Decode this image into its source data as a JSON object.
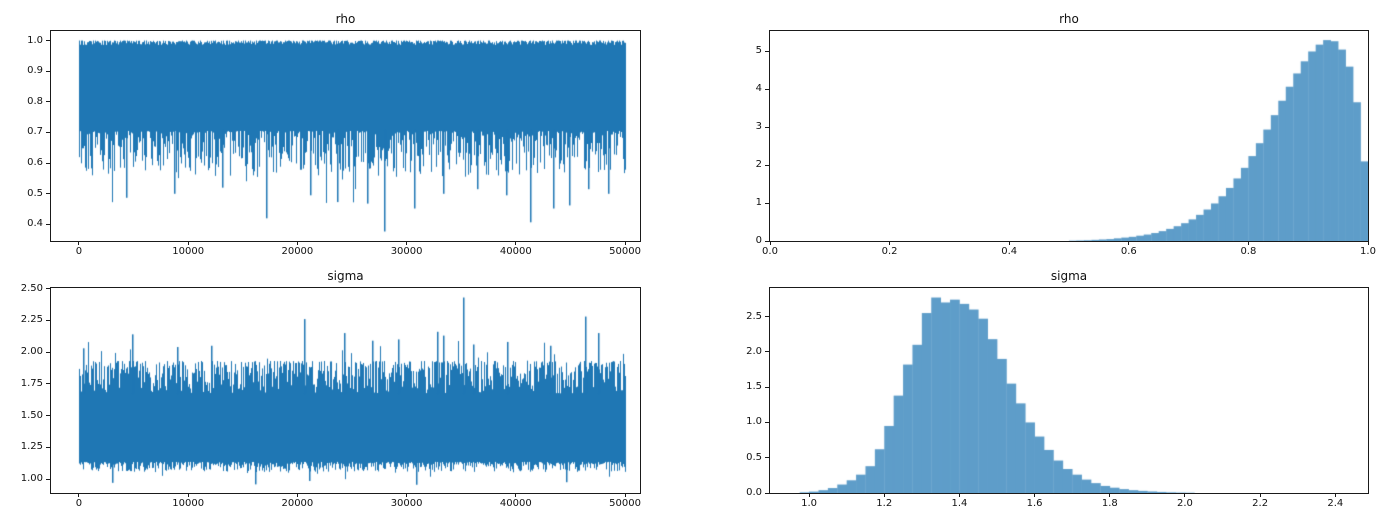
{
  "figure": {
    "background": "#ffffff",
    "spine_color": "#1a1a1a",
    "text_color": "#111111",
    "trace_line_color": "#1f77b4",
    "hist_fill_color": "#5E9DC9"
  },
  "chart_data": [
    {
      "id": "rho-trace",
      "type": "line",
      "title": "rho",
      "xlabel": "",
      "ylabel": "",
      "xlim": [
        -2560,
        51370
      ],
      "ylim": [
        0.346,
        1.031
      ],
      "xtick_vals": [
        0,
        10000,
        20000,
        30000,
        40000,
        50000
      ],
      "xtick_labels": [
        "0",
        "10000",
        "20000",
        "30000",
        "40000",
        "50000"
      ],
      "ytick_vals": [
        0.4,
        0.5,
        0.6,
        0.7,
        0.8,
        0.9,
        1.0
      ],
      "ytick_labels": [
        "0.4",
        "0.5",
        "0.6",
        "0.7",
        "0.8",
        "0.9",
        "1.0"
      ],
      "n_samples": 50000,
      "seed": 1234,
      "band": {
        "top_range": [
          0.9855,
          1.0
        ],
        "bottom_range": [
          0.555,
          0.705
        ],
        "bottom_spike_prob": 0.045,
        "bottom_spike_depth": 0.13,
        "floor": 0.377
      },
      "notable_lows": [
        [
          4300,
          0.487
        ],
        [
          8700,
          0.5
        ],
        [
          13100,
          0.52
        ],
        [
          17100,
          0.42
        ],
        [
          21200,
          0.495
        ],
        [
          23600,
          0.473
        ],
        [
          26400,
          0.468
        ],
        [
          27900,
          0.377
        ],
        [
          30700,
          0.452
        ],
        [
          33300,
          0.5
        ],
        [
          36400,
          0.515
        ],
        [
          39100,
          0.495
        ],
        [
          41300,
          0.407
        ],
        [
          43400,
          0.452
        ],
        [
          44900,
          0.462
        ],
        [
          46600,
          0.515
        ],
        [
          48400,
          0.5
        ]
      ],
      "summary": {
        "description": "MCMC trace of rho over 50000 iterations; dense band hugging 1.0 with lower edge fluctuating around 0.55-0.70",
        "min": 0.377,
        "max": 1.0
      }
    },
    {
      "id": "rho-hist",
      "type": "histogram",
      "title": "rho",
      "xlabel": "",
      "ylabel": "",
      "xlim": [
        0.0,
        1.0
      ],
      "ylim": [
        0,
        5.54
      ],
      "xtick_vals": [
        0.0,
        0.2,
        0.4,
        0.6,
        0.8,
        1.0
      ],
      "xtick_labels": [
        "0.0",
        "0.2",
        "0.4",
        "0.6",
        "0.8",
        "1.0"
      ],
      "ytick_vals": [
        0,
        1,
        2,
        3,
        4,
        5
      ],
      "ytick_labels": [
        "0",
        "1",
        "2",
        "3",
        "4",
        "5"
      ],
      "bin_start": 0.5,
      "bin_width": 0.0125,
      "densities": [
        0.01,
        0.015,
        0.02,
        0.03,
        0.04,
        0.05,
        0.07,
        0.09,
        0.11,
        0.14,
        0.17,
        0.21,
        0.26,
        0.32,
        0.39,
        0.47,
        0.57,
        0.69,
        0.83,
        0.99,
        1.18,
        1.4,
        1.65,
        1.93,
        2.24,
        2.58,
        2.94,
        3.32,
        3.7,
        4.07,
        4.42,
        4.74,
        5.0,
        5.18,
        5.3,
        5.27,
        5.05,
        4.6,
        3.66,
        2.1
      ],
      "summary": {
        "description": "Posterior density histogram of rho, left-skewed, peak ~5.3 near 0.93, truncated at 1.0 where density ~2.1"
      }
    },
    {
      "id": "sigma-trace",
      "type": "line",
      "title": "sigma",
      "xlabel": "",
      "ylabel": "",
      "xlim": [
        -2560,
        51370
      ],
      "ylim": [
        0.89,
        2.505
      ],
      "xtick_vals": [
        0,
        10000,
        20000,
        30000,
        40000,
        50000
      ],
      "xtick_labels": [
        "0",
        "10000",
        "20000",
        "30000",
        "40000",
        "50000"
      ],
      "ytick_vals": [
        1.0,
        1.25,
        1.5,
        1.75,
        2.0,
        2.25,
        2.5
      ],
      "ytick_labels": [
        "1.00",
        "1.25",
        "1.50",
        "1.75",
        "2.00",
        "2.25",
        "2.50"
      ],
      "n_samples": 50000,
      "seed": 5678,
      "band": {
        "top_range": [
          1.675,
          1.93
        ],
        "top_spike_prob": 0.05,
        "top_spike_extra": 0.17,
        "bottom_range": [
          1.055,
          1.135
        ],
        "bottom_spike_prob": 0.05,
        "bottom_spike_extra": 0.07,
        "floor": 0.955,
        "ceil": 2.43
      },
      "notable_highs": [
        [
          350,
          2.03
        ],
        [
          4900,
          2.14
        ],
        [
          9000,
          2.04
        ],
        [
          12100,
          2.05
        ],
        [
          20600,
          2.26
        ],
        [
          24300,
          2.15
        ],
        [
          26800,
          2.09
        ],
        [
          29200,
          2.1
        ],
        [
          32800,
          2.16
        ],
        [
          33300,
          2.13
        ],
        [
          35200,
          2.43
        ],
        [
          36100,
          2.06
        ],
        [
          39200,
          2.08
        ],
        [
          43100,
          2.05
        ],
        [
          46300,
          2.28
        ],
        [
          47500,
          2.15
        ]
      ],
      "notable_lows": [
        [
          3000,
          0.97
        ],
        [
          16100,
          0.958
        ],
        [
          21100,
          0.985
        ],
        [
          30900,
          0.955
        ],
        [
          44600,
          0.975
        ]
      ],
      "summary": {
        "description": "MCMC trace of sigma over 50000 iterations; dense band between ~1.05 and ~1.75 with spikes up to 2.43",
        "min": 0.955,
        "max": 2.43
      }
    },
    {
      "id": "sigma-hist",
      "type": "histogram",
      "title": "sigma",
      "xlabel": "",
      "ylabel": "",
      "xlim": [
        0.896,
        2.487
      ],
      "ylim": [
        0,
        2.905
      ],
      "xtick_vals": [
        1.0,
        1.2,
        1.4,
        1.6,
        1.8,
        2.0,
        2.2,
        2.4
      ],
      "xtick_labels": [
        "1.0",
        "1.2",
        "1.4",
        "1.6",
        "1.8",
        "2.0",
        "2.2",
        "2.4"
      ],
      "ytick_vals": [
        0.0,
        0.5,
        1.0,
        1.5,
        2.0,
        2.5
      ],
      "ytick_labels": [
        "0.0",
        "0.5",
        "1.0",
        "1.5",
        "2.0",
        "2.5"
      ],
      "bin_start": 0.975,
      "bin_width": 0.025,
      "densities": [
        0.01,
        0.02,
        0.04,
        0.07,
        0.12,
        0.18,
        0.26,
        0.38,
        0.62,
        0.95,
        1.38,
        1.82,
        2.1,
        2.55,
        2.77,
        2.7,
        2.74,
        2.68,
        2.6,
        2.47,
        2.18,
        1.9,
        1.55,
        1.27,
        1.0,
        0.8,
        0.61,
        0.46,
        0.34,
        0.26,
        0.19,
        0.14,
        0.1,
        0.075,
        0.055,
        0.04,
        0.03,
        0.022,
        0.015,
        0.01,
        0.007,
        0.005
      ],
      "summary": {
        "description": "Posterior density histogram of sigma, right-skewed bell, peak ~2.77 near 1.34, tail fading out by ~2.0"
      }
    }
  ]
}
